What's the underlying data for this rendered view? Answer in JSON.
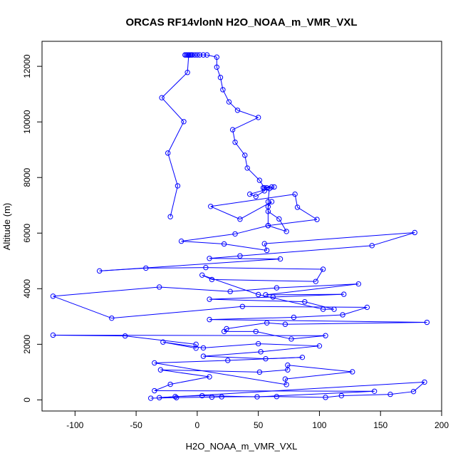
{
  "chart_data": {
    "type": "line",
    "title": "ORCAS RF14vlonN H2O_NOAA_m_VMR_VXL",
    "xlabel": "H2O_NOAA_m_VMR_VXL",
    "ylabel": "Altitude (m)",
    "xlim": [
      -127,
      200
    ],
    "ylim": [
      -400,
      12900
    ],
    "x_ticks": [
      -100,
      -50,
      0,
      50,
      100,
      150,
      200
    ],
    "y_ticks": [
      0,
      2000,
      4000,
      6000,
      8000,
      10000,
      12000
    ],
    "x_tick_labels": [
      "-100",
      "-50",
      "0",
      "50",
      "100",
      "150",
      "200"
    ],
    "y_tick_labels": [
      "0",
      "2000",
      "4000",
      "6000",
      "8000",
      "10000",
      "12000"
    ],
    "grid": false,
    "series": [
      {
        "color": "#0000ff",
        "marker": "open-circle",
        "points": [
          [
            -38,
            60
          ],
          [
            -17,
            80
          ],
          [
            12,
            100
          ],
          [
            20,
            110
          ],
          [
            65,
            120
          ],
          [
            105,
            90
          ],
          [
            118,
            150
          ],
          [
            158,
            200
          ],
          [
            177,
            300
          ],
          [
            186,
            640
          ],
          [
            -31,
            80
          ],
          [
            -18,
            120
          ],
          [
            4,
            150
          ],
          [
            49,
            110
          ],
          [
            145,
            310
          ],
          [
            -35,
            330
          ],
          [
            -22,
            560
          ],
          [
            10,
            830
          ],
          [
            -30,
            1080
          ],
          [
            51,
            1000
          ],
          [
            74,
            1080
          ],
          [
            74,
            1250
          ],
          [
            127,
            1010
          ],
          [
            72,
            750
          ],
          [
            73,
            550
          ],
          [
            -35,
            1330
          ],
          [
            25,
            1420
          ],
          [
            86,
            1530
          ],
          [
            56,
            1480
          ],
          [
            5,
            1570
          ],
          [
            52,
            1730
          ],
          [
            100,
            1940
          ],
          [
            50,
            2020
          ],
          [
            5,
            1870
          ],
          [
            -28,
            2080
          ],
          [
            -1,
            1860
          ],
          [
            -1,
            2000
          ],
          [
            -59,
            2300
          ],
          [
            -118,
            2330
          ],
          [
            105,
            2310
          ],
          [
            77,
            2190
          ],
          [
            48,
            2460
          ],
          [
            22,
            2460
          ],
          [
            24,
            2560
          ],
          [
            57,
            2770
          ],
          [
            72,
            2720
          ],
          [
            188,
            2790
          ],
          [
            10,
            2890
          ],
          [
            79,
            2970
          ],
          [
            119,
            3060
          ],
          [
            139,
            3330
          ],
          [
            37,
            3360
          ],
          [
            -70,
            2940
          ],
          [
            -118,
            3730
          ],
          [
            -31,
            4060
          ],
          [
            27,
            3900
          ],
          [
            65,
            4030
          ],
          [
            132,
            4170
          ],
          [
            56,
            3780
          ],
          [
            120,
            3800
          ],
          [
            62,
            3700
          ],
          [
            10,
            3620
          ],
          [
            88,
            3530
          ],
          [
            112,
            3260
          ],
          [
            103,
            3260
          ],
          [
            50,
            3790
          ],
          [
            4,
            4490
          ],
          [
            12,
            4330
          ],
          [
            97,
            4260
          ],
          [
            103,
            4700
          ],
          [
            7,
            4760
          ],
          [
            -42,
            4740
          ],
          [
            -80,
            4640
          ],
          [
            68,
            5070
          ],
          [
            10,
            5090
          ],
          [
            35,
            5180
          ],
          [
            143,
            5550
          ],
          [
            178,
            6020
          ],
          [
            55,
            5620
          ],
          [
            57,
            5380
          ],
          [
            22,
            5610
          ],
          [
            -13,
            5710
          ],
          [
            31,
            5970
          ],
          [
            58,
            6270
          ],
          [
            73,
            6060
          ],
          [
            67,
            6510
          ],
          [
            58,
            6780
          ],
          [
            58,
            6950
          ],
          [
            61,
            7130
          ],
          [
            35,
            6500
          ],
          [
            11,
            6960
          ],
          [
            80,
            7400
          ],
          [
            82,
            6930
          ],
          [
            98,
            6490
          ],
          [
            58,
            6270
          ],
          [
            58,
            7130
          ],
          [
            59,
            7600
          ],
          [
            43,
            7400
          ],
          [
            48,
            7320
          ],
          [
            55,
            7520
          ],
          [
            57,
            7630
          ],
          [
            61,
            7660
          ],
          [
            54,
            7630
          ],
          [
            63,
            7660
          ],
          [
            55,
            7630
          ],
          [
            51,
            7900
          ],
          [
            41,
            8340
          ],
          [
            39,
            8800
          ],
          [
            31,
            9270
          ],
          [
            29,
            9720
          ],
          [
            50,
            10160
          ],
          [
            33,
            10420
          ],
          [
            26,
            10720
          ],
          [
            21,
            11160
          ],
          [
            19,
            11600
          ],
          [
            16,
            11970
          ],
          [
            16,
            12330
          ],
          [
            8,
            12410
          ],
          [
            5,
            12410
          ],
          [
            2,
            12410
          ],
          [
            0,
            12410
          ],
          [
            -2,
            12410
          ],
          [
            -4,
            12410
          ],
          [
            -5,
            12410
          ],
          [
            -6,
            12410
          ],
          [
            -7,
            12410
          ],
          [
            -8,
            12410
          ],
          [
            -9,
            12410
          ],
          [
            -10,
            12410
          ],
          [
            -7,
            12400
          ],
          [
            -8,
            11780
          ],
          [
            -29,
            10870
          ],
          [
            -11,
            10010
          ],
          [
            -24,
            8880
          ],
          [
            -16,
            7700
          ],
          [
            -22,
            6590
          ]
        ]
      }
    ]
  }
}
